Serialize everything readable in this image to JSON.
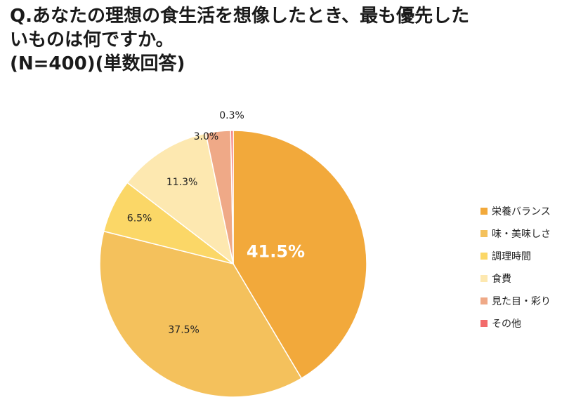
{
  "title_lines": [
    "Q.あなたの理想の食生活を想像したとき、最も優先した",
    "いものは何ですか。",
    "(N=400)(単数回答)"
  ],
  "chart_data": {
    "type": "pie",
    "categories": [
      "栄養バランス",
      "味・美味しさ",
      "調理時間",
      "食費",
      "見た目・彩り",
      "その他"
    ],
    "values": [
      41.5,
      37.5,
      6.5,
      11.3,
      3.0,
      0.3
    ],
    "data_labels": [
      "41.5%",
      "37.5%",
      "6.5%",
      "11.3%",
      "3.0%",
      "0.3%"
    ],
    "colors": [
      "#F2A93B",
      "#F4C15C",
      "#FBD767",
      "#FDE8B0",
      "#EFA987",
      "#F26B6B"
    ],
    "legend_position": "right",
    "start_angle": "top, clockwise"
  }
}
